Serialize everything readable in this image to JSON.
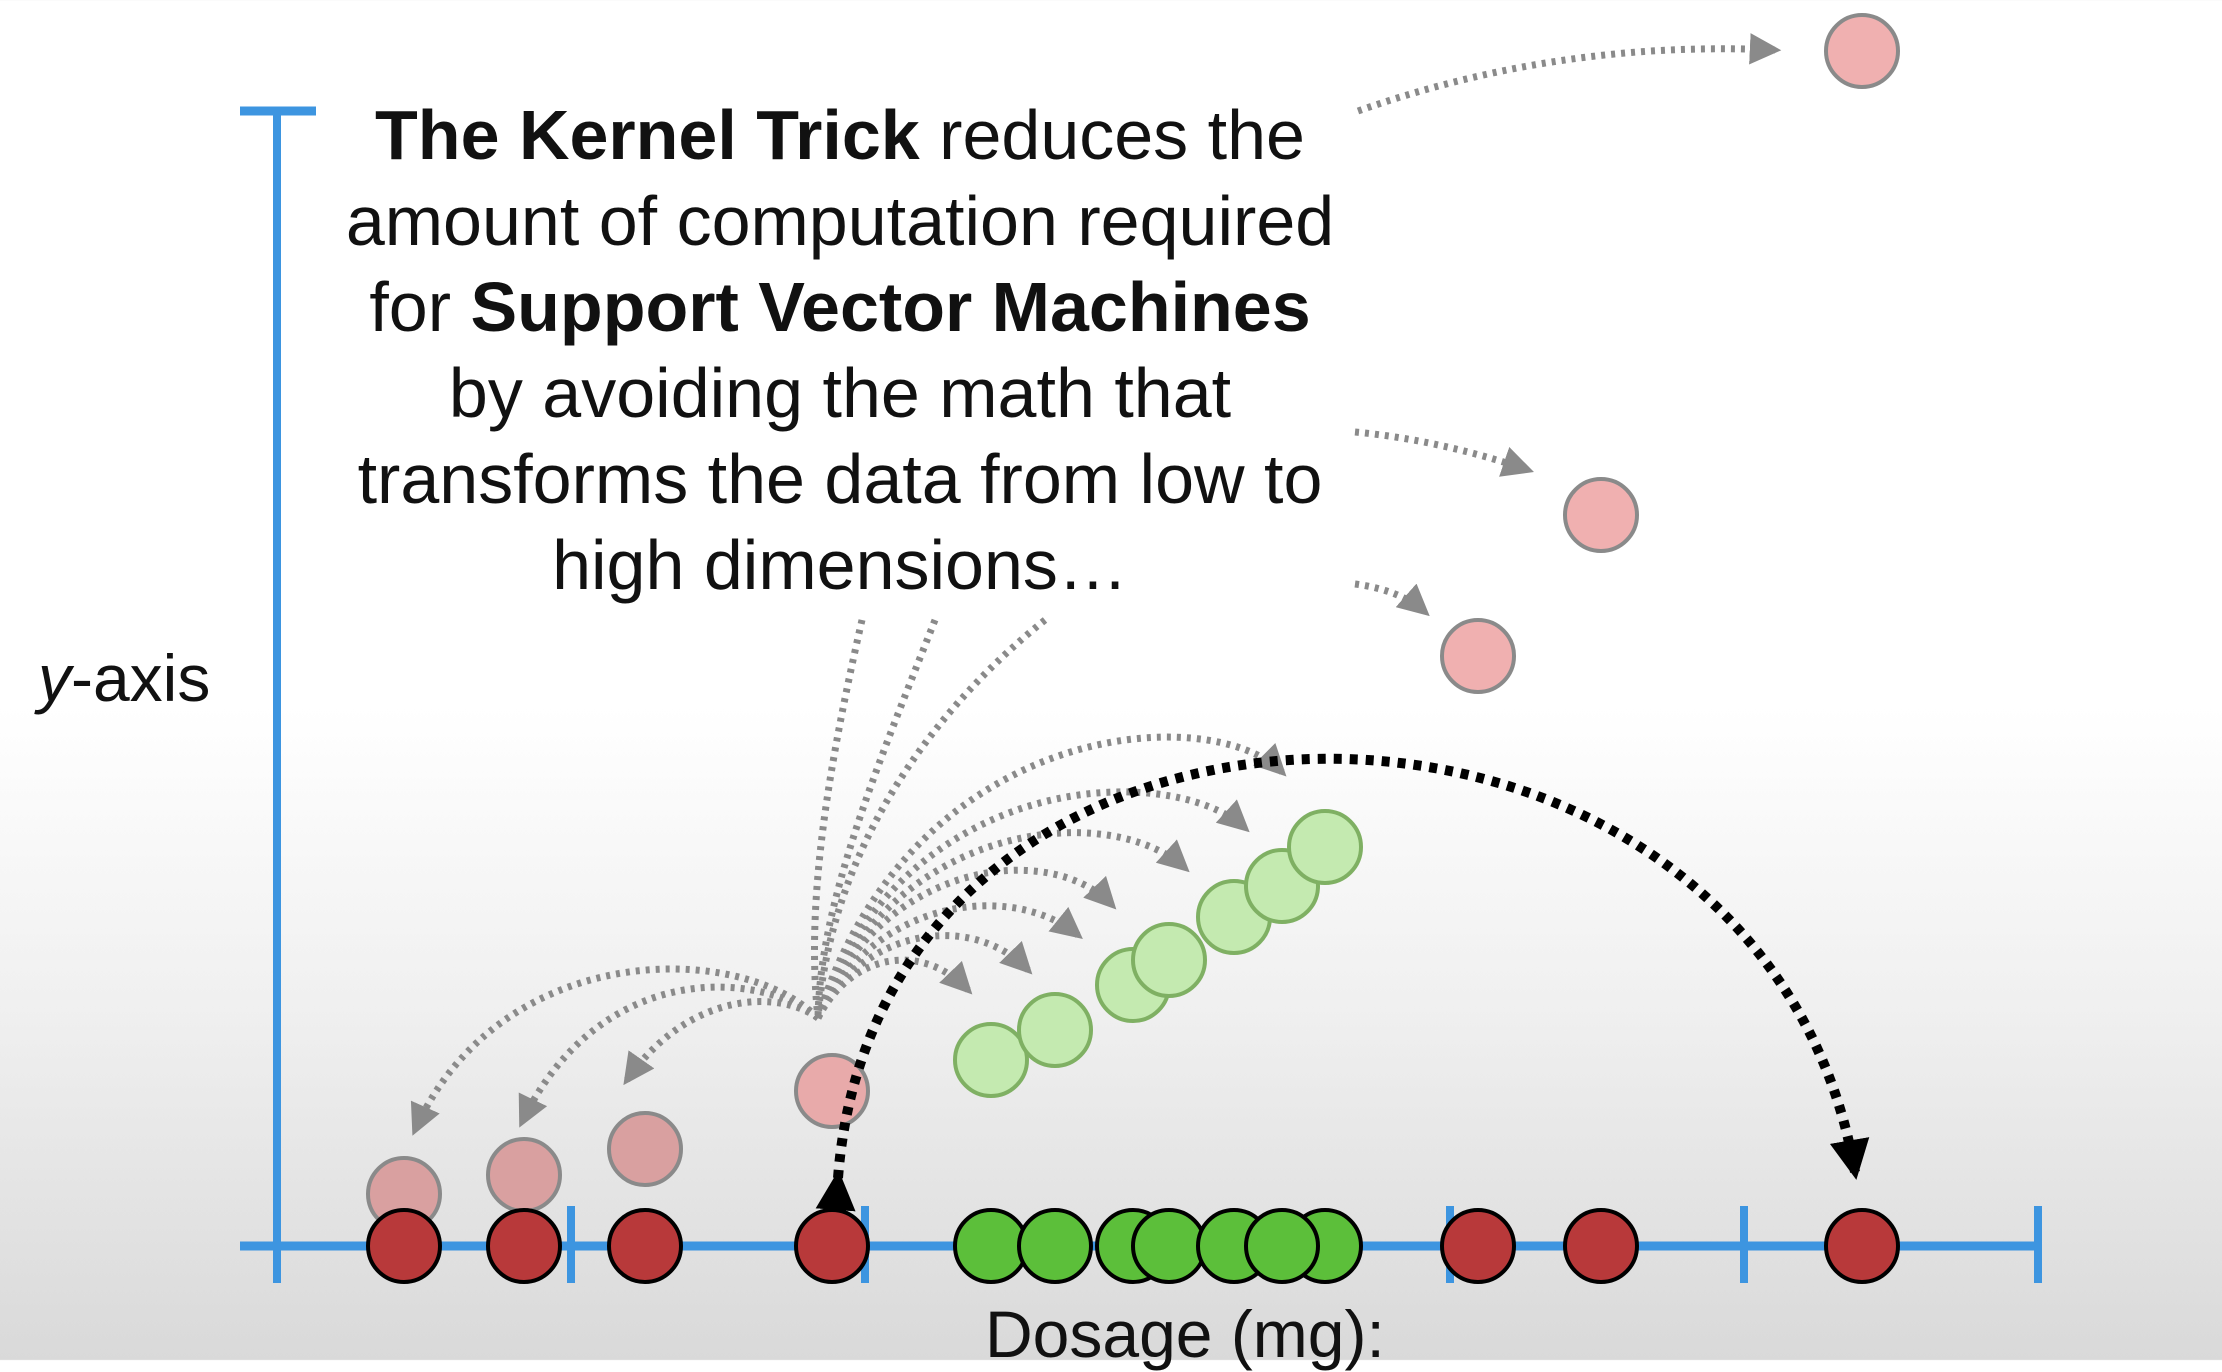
{
  "caption": {
    "bold1": "The Kernel Trick",
    "text1": " reduces the amount of computation required for ",
    "bold2": "Support Vector Machines",
    "text2": " by avoiding the math that transforms the data from low to high dimensions…"
  },
  "axes": {
    "y_label_var": "y",
    "y_label_rest": "-axis",
    "x_label": "Dosage (mg):"
  },
  "colors": {
    "axis": "#3d95e0",
    "red_fill": "#b8393a",
    "pink_fill": "#f0b0b0",
    "pink_stroke": "#8a8a8a",
    "green_fill": "#5cbf3a",
    "light_green_fill": "#c4eab0",
    "light_green_stroke": "#7fb063",
    "arrow_gray": "#8a8a8a",
    "arrow_black": "#000000"
  }
}
